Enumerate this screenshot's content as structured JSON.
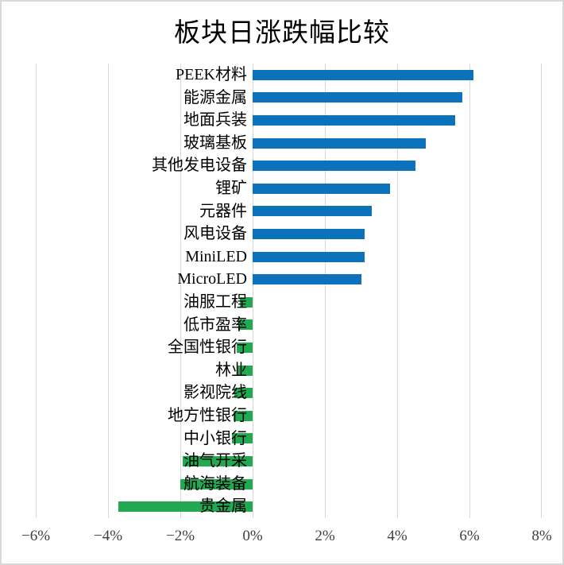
{
  "chart_data": {
    "type": "bar",
    "orientation": "horizontal",
    "title": "板块日涨跌幅比较",
    "categories": [
      "PEEK材料",
      "能源金属",
      "地面兵装",
      "玻璃基板",
      "其他发电设备",
      "锂矿",
      "元器件",
      "风电设备",
      "MiniLED",
      "MicroLED",
      "油服工程",
      "低市盈率",
      "全国性银行",
      "林业",
      "影视院线",
      "地方性银行",
      "中小银行",
      "油气开采",
      "航海装备",
      "贵金属"
    ],
    "values": [
      6.1,
      5.8,
      5.6,
      4.8,
      4.5,
      3.8,
      3.3,
      3.1,
      3.1,
      3.0,
      -0.35,
      -0.4,
      -0.44,
      -0.45,
      -0.5,
      -0.53,
      -0.57,
      -1.93,
      -2.0,
      -3.72
    ],
    "unit": "%",
    "x_ticks": [
      "−6%",
      "−4%",
      "−2%",
      "0%",
      "2%",
      "4%",
      "6%",
      "8%"
    ],
    "x_tick_values": [
      -6,
      -4,
      -2,
      0,
      2,
      4,
      6,
      8
    ],
    "xlim": [
      -6,
      8
    ],
    "grid": "vertical-gridlines-on",
    "legend": "none",
    "colors": {
      "positive_bar": "#0C72BB",
      "negative_bar": "#22A952",
      "gridline": "#d9d9d9",
      "tick_text": "#404040",
      "label_text": "#000000",
      "background": "#ffffff",
      "border": "#d9d9d9"
    }
  }
}
